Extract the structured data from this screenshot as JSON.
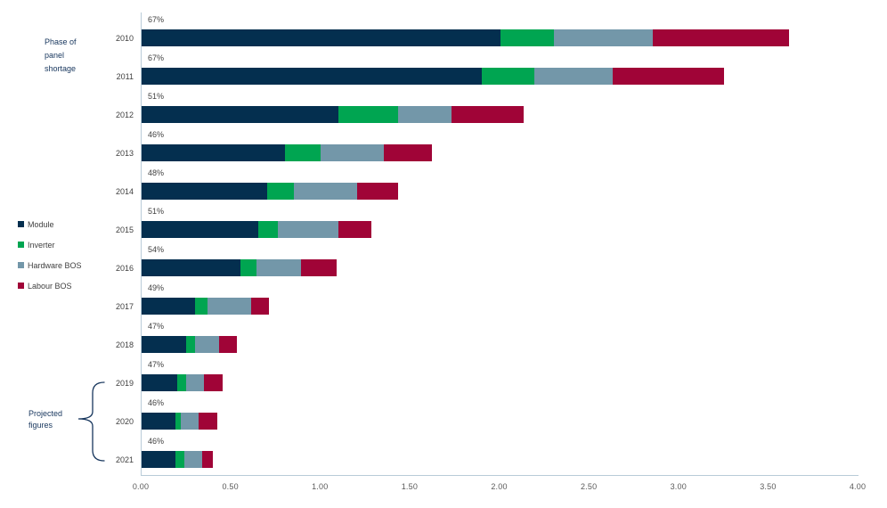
{
  "annotations": {
    "phase": {
      "lines": [
        "Phase of",
        "panel",
        "shortage"
      ]
    },
    "projected": {
      "lines": [
        "Projected",
        "figures"
      ]
    }
  },
  "colors": {
    "module": "#042f4f",
    "inverter": "#00a551",
    "hardware_bos": "#7397a9",
    "labour_bos": "#a00437",
    "axis": "#b9ccd8",
    "annotation_text": "#17365d",
    "tick_text": "#595959",
    "label_text": "#404040"
  },
  "chart_data": {
    "type": "bar",
    "orientation": "horizontal",
    "stacked": true,
    "grid": false,
    "legend_position": "left",
    "categories": [
      "2010",
      "2011",
      "2012",
      "2013",
      "2014",
      "2015",
      "2016",
      "2017",
      "2018",
      "2019",
      "2020",
      "2021"
    ],
    "bar_labels": [
      "67%",
      "67%",
      "51%",
      "46%",
      "48%",
      "51%",
      "54%",
      "49%",
      "47%",
      "47%",
      "46%",
      "46%"
    ],
    "series": [
      {
        "name": "Module",
        "color": "#042f4f",
        "values": [
          2.0,
          1.9,
          1.1,
          0.8,
          0.7,
          0.65,
          0.55,
          0.3,
          0.25,
          0.2,
          0.19,
          0.19
        ]
      },
      {
        "name": "Inverter",
        "color": "#00a551",
        "values": [
          0.3,
          0.29,
          0.33,
          0.2,
          0.15,
          0.11,
          0.09,
          0.07,
          0.05,
          0.05,
          0.03,
          0.05
        ]
      },
      {
        "name": "Hardware BOS",
        "color": "#7397a9",
        "values": [
          0.55,
          0.44,
          0.3,
          0.35,
          0.35,
          0.34,
          0.25,
          0.24,
          0.13,
          0.1,
          0.1,
          0.1
        ]
      },
      {
        "name": "Labour BOS",
        "color": "#a00437",
        "values": [
          0.76,
          0.62,
          0.4,
          0.27,
          0.23,
          0.18,
          0.2,
          0.1,
          0.1,
          0.1,
          0.1,
          0.06
        ]
      }
    ],
    "xlim": [
      0,
      4
    ],
    "x_ticks": [
      "0.00",
      "0.50",
      "1.00",
      "1.50",
      "2.00",
      "2.50",
      "3.00",
      "3.50",
      "4.00"
    ],
    "xlabel": "",
    "ylabel": ""
  }
}
